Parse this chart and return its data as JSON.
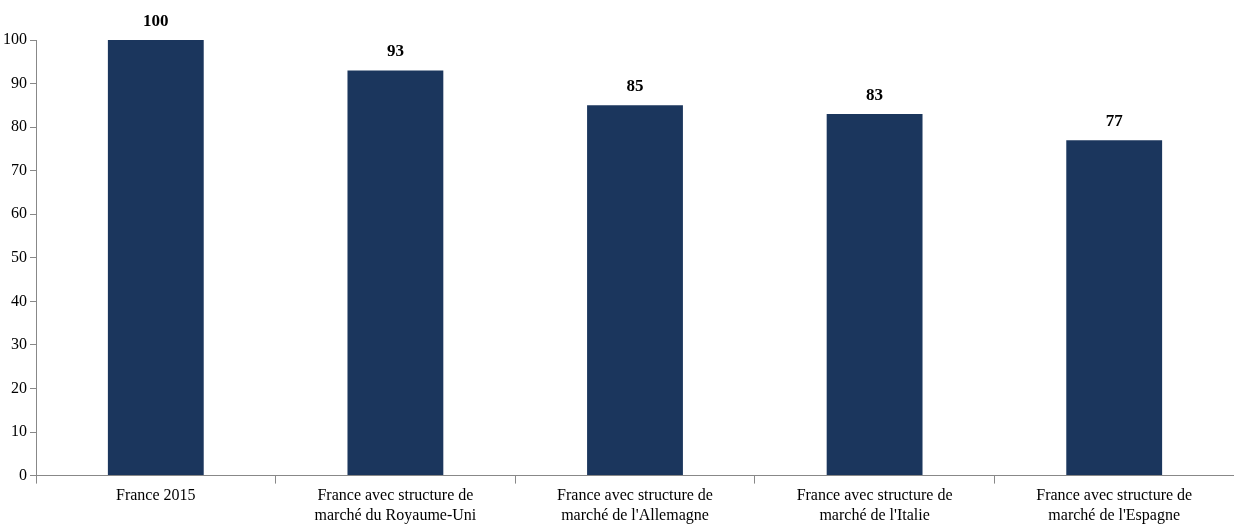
{
  "chart_data": {
    "type": "bar",
    "categories": [
      "France 2015",
      "France avec structure de marché du Royaume-Uni",
      "France avec structure de marché de l'Allemagne",
      "France avec structure de marché de l'Italie",
      "France avec structure de marché de l'Espagne"
    ],
    "values": [
      100,
      93,
      85,
      83,
      77
    ],
    "color": "#1b365d",
    "ylim": [
      0,
      100
    ],
    "yticks": [
      0,
      10,
      20,
      30,
      40,
      50,
      60,
      70,
      80,
      90,
      100
    ],
    "grid": false,
    "legend": false,
    "data_labels": true
  }
}
